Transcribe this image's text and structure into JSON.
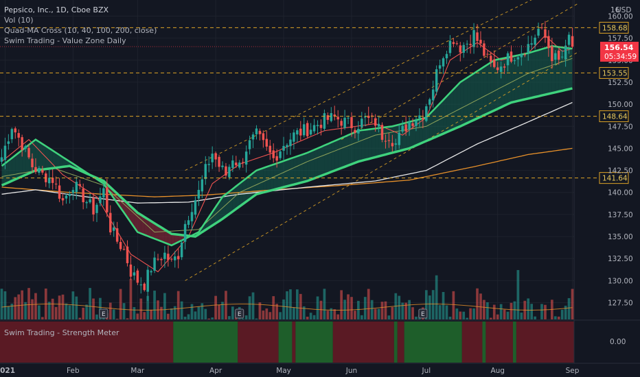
{
  "chart_data": {
    "type": "candlestick",
    "legend": [
      "Pepsico, Inc., 1D, Cboe BZX",
      "Vol (10)",
      "Quad-MA Cross (10, 40, 100, 200, close)",
      "Swim Trading - Value Zone Daily"
    ],
    "currency": "USD",
    "price_ticks": [
      "160.00",
      "157.50",
      "155.00",
      "152.50",
      "150.00",
      "147.50",
      "145.00",
      "142.50",
      "140.00",
      "137.50",
      "135.00",
      "132.50",
      "130.00",
      "127.50"
    ],
    "top_tick_partial": "16",
    "price_range": [
      125.6,
      161.2
    ],
    "last_price": {
      "value": "156.54",
      "countdown": "05:34:59",
      "color": "#f23645"
    },
    "horizontal_levels": [
      {
        "label": "158.68",
        "price": 158.68
      },
      {
        "label": "153.55",
        "price": 153.55
      },
      {
        "label": "148.64",
        "price": 148.64
      },
      {
        "label": "141.64",
        "price": 141.64
      }
    ],
    "x_labels": [
      {
        "label": "2021",
        "day": 1
      },
      {
        "label": "Feb",
        "day": 21
      },
      {
        "label": "Mar",
        "day": 40
      },
      {
        "label": "Apr",
        "day": 63
      },
      {
        "label": "May",
        "day": 83
      },
      {
        "label": "Jun",
        "day": 103
      },
      {
        "label": "Jul",
        "day": 125
      },
      {
        "label": "Aug",
        "day": 146
      },
      {
        "label": "Sep",
        "day": 168
      }
    ],
    "anchors": [
      {
        "day": 0,
        "price": 144.0
      },
      {
        "day": 3,
        "price": 147.6
      },
      {
        "day": 6,
        "price": 145.5
      },
      {
        "day": 9,
        "price": 143.0
      },
      {
        "day": 12,
        "price": 142.0
      },
      {
        "day": 15,
        "price": 141.5
      },
      {
        "day": 18,
        "price": 139.0
      },
      {
        "day": 21,
        "price": 141.0
      },
      {
        "day": 24,
        "price": 139.5
      },
      {
        "day": 27,
        "price": 138.0
      },
      {
        "day": 30,
        "price": 140.2
      },
      {
        "day": 32,
        "price": 136.0
      },
      {
        "day": 34,
        "price": 134.5
      },
      {
        "day": 36,
        "price": 133.5
      },
      {
        "day": 38,
        "price": 131.0
      },
      {
        "day": 40,
        "price": 130.0
      },
      {
        "day": 42,
        "price": 129.6
      },
      {
        "day": 44,
        "price": 131.5
      },
      {
        "day": 46,
        "price": 132.5
      },
      {
        "day": 48,
        "price": 133.0
      },
      {
        "day": 50,
        "price": 132.0
      },
      {
        "day": 52,
        "price": 133.0
      },
      {
        "day": 54,
        "price": 136.5
      },
      {
        "day": 56,
        "price": 138.5
      },
      {
        "day": 58,
        "price": 140.0
      },
      {
        "day": 60,
        "price": 142.5
      },
      {
        "day": 62,
        "price": 144.5
      },
      {
        "day": 64,
        "price": 143.0
      },
      {
        "day": 66,
        "price": 142.0
      },
      {
        "day": 68,
        "price": 144.0
      },
      {
        "day": 70,
        "price": 143.0
      },
      {
        "day": 72,
        "price": 145.0
      },
      {
        "day": 75,
        "price": 146.5
      },
      {
        "day": 78,
        "price": 144.8
      },
      {
        "day": 80,
        "price": 143.8
      },
      {
        "day": 83,
        "price": 145.5
      },
      {
        "day": 86,
        "price": 146.5
      },
      {
        "day": 89,
        "price": 147.0
      },
      {
        "day": 92,
        "price": 147.5
      },
      {
        "day": 95,
        "price": 148.2
      },
      {
        "day": 98,
        "price": 148.5
      },
      {
        "day": 101,
        "price": 148.0
      },
      {
        "day": 104,
        "price": 147.5
      },
      {
        "day": 107,
        "price": 148.3
      },
      {
        "day": 110,
        "price": 148.0
      },
      {
        "day": 112,
        "price": 146.5
      },
      {
        "day": 114,
        "price": 146.5
      },
      {
        "day": 116,
        "price": 145.5
      },
      {
        "day": 118,
        "price": 147.0
      },
      {
        "day": 120,
        "price": 148.0
      },
      {
        "day": 122,
        "price": 148.5
      },
      {
        "day": 124,
        "price": 149.0
      },
      {
        "day": 127,
        "price": 152.0
      },
      {
        "day": 129,
        "price": 155.0
      },
      {
        "day": 131,
        "price": 156.5
      },
      {
        "day": 133,
        "price": 157.5
      },
      {
        "day": 135,
        "price": 156.5
      },
      {
        "day": 137,
        "price": 157.0
      },
      {
        "day": 139,
        "price": 158.0
      },
      {
        "day": 141,
        "price": 156.5
      },
      {
        "day": 143,
        "price": 155.0
      },
      {
        "day": 145,
        "price": 154.0
      },
      {
        "day": 147,
        "price": 154.5
      },
      {
        "day": 150,
        "price": 155.5
      },
      {
        "day": 153,
        "price": 156.0
      },
      {
        "day": 156,
        "price": 157.0
      },
      {
        "day": 158,
        "price": 158.5
      },
      {
        "day": 160,
        "price": 157.5
      },
      {
        "day": 162,
        "price": 155.5
      },
      {
        "day": 164,
        "price": 154.8
      },
      {
        "day": 166,
        "price": 156.0
      },
      {
        "day": 167,
        "price": 157.6
      },
      {
        "day": 168,
        "price": 156.54
      }
    ],
    "ma_slow": [
      {
        "day": 0,
        "price": 140.6
      },
      {
        "day": 20,
        "price": 140.0
      },
      {
        "day": 45,
        "price": 139.5
      },
      {
        "day": 60,
        "price": 139.7
      },
      {
        "day": 80,
        "price": 140.3
      },
      {
        "day": 100,
        "price": 140.8
      },
      {
        "day": 120,
        "price": 141.4
      },
      {
        "day": 140,
        "price": 143.0
      },
      {
        "day": 155,
        "price": 144.3
      },
      {
        "day": 168,
        "price": 145.0
      }
    ],
    "ma_white": [
      {
        "day": 0,
        "price": 139.8
      },
      {
        "day": 10,
        "price": 140.3
      },
      {
        "day": 25,
        "price": 139.5
      },
      {
        "day": 40,
        "price": 138.8
      },
      {
        "day": 55,
        "price": 138.9
      },
      {
        "day": 70,
        "price": 139.8
      },
      {
        "day": 90,
        "price": 140.6
      },
      {
        "day": 110,
        "price": 141.3
      },
      {
        "day": 125,
        "price": 142.5
      },
      {
        "day": 140,
        "price": 145.5
      },
      {
        "day": 155,
        "price": 148.0
      },
      {
        "day": 168,
        "price": 150.2
      }
    ],
    "ma_green_thick": [
      {
        "day": 0,
        "price": 140.8
      },
      {
        "day": 10,
        "price": 142.5
      },
      {
        "day": 20,
        "price": 143.0
      },
      {
        "day": 30,
        "price": 141.3
      },
      {
        "day": 40,
        "price": 137.7
      },
      {
        "day": 50,
        "price": 135.3
      },
      {
        "day": 57,
        "price": 135.0
      },
      {
        "day": 65,
        "price": 137.0
      },
      {
        "day": 75,
        "price": 139.8
      },
      {
        "day": 90,
        "price": 141.3
      },
      {
        "day": 105,
        "price": 143.5
      },
      {
        "day": 120,
        "price": 145.0
      },
      {
        "day": 135,
        "price": 147.5
      },
      {
        "day": 150,
        "price": 150.2
      },
      {
        "day": 168,
        "price": 151.8
      }
    ],
    "ma_green_fast": [
      {
        "day": 0,
        "price": 143.0
      },
      {
        "day": 10,
        "price": 146.0
      },
      {
        "day": 20,
        "price": 143.5
      },
      {
        "day": 30,
        "price": 141.0
      },
      {
        "day": 40,
        "price": 135.5
      },
      {
        "day": 50,
        "price": 134.0
      },
      {
        "day": 58,
        "price": 135.5
      },
      {
        "day": 65,
        "price": 139.5
      },
      {
        "day": 75,
        "price": 142.5
      },
      {
        "day": 90,
        "price": 144.5
      },
      {
        "day": 105,
        "price": 147.0
      },
      {
        "day": 115,
        "price": 147.5
      },
      {
        "day": 125,
        "price": 148.5
      },
      {
        "day": 135,
        "price": 152.5
      },
      {
        "day": 145,
        "price": 155.0
      },
      {
        "day": 155,
        "price": 155.8
      },
      {
        "day": 162,
        "price": 156.6
      },
      {
        "day": 168,
        "price": 156.3
      }
    ],
    "ma_olive": [
      {
        "day": 0,
        "price": 141.8
      },
      {
        "day": 15,
        "price": 142.8
      },
      {
        "day": 30,
        "price": 140.8
      },
      {
        "day": 45,
        "price": 135.5
      },
      {
        "day": 58,
        "price": 135.8
      },
      {
        "day": 70,
        "price": 140.0
      },
      {
        "day": 90,
        "price": 143.5
      },
      {
        "day": 110,
        "price": 146.5
      },
      {
        "day": 125,
        "price": 147.5
      },
      {
        "day": 140,
        "price": 150.5
      },
      {
        "day": 155,
        "price": 153.5
      },
      {
        "day": 168,
        "price": 155.2
      }
    ],
    "ma_red": [
      {
        "day": 0,
        "price": 143.5
      },
      {
        "day": 8,
        "price": 146.0
      },
      {
        "day": 18,
        "price": 142.0
      },
      {
        "day": 28,
        "price": 139.5
      },
      {
        "day": 38,
        "price": 133.0
      },
      {
        "day": 46,
        "price": 131.0
      },
      {
        "day": 55,
        "price": 135.0
      },
      {
        "day": 62,
        "price": 141.0
      },
      {
        "day": 70,
        "price": 143.2
      },
      {
        "day": 80,
        "price": 144.5
      },
      {
        "day": 95,
        "price": 147.0
      },
      {
        "day": 110,
        "price": 147.8
      },
      {
        "day": 118,
        "price": 146.5
      },
      {
        "day": 125,
        "price": 148.5
      },
      {
        "day": 132,
        "price": 155.0
      },
      {
        "day": 140,
        "price": 157.0
      },
      {
        "day": 147,
        "price": 155.0
      },
      {
        "day": 155,
        "price": 155.8
      },
      {
        "day": 160,
        "price": 157.8
      },
      {
        "day": 165,
        "price": 156.0
      },
      {
        "day": 168,
        "price": 156.3
      }
    ],
    "channel_lines": [
      {
        "from": {
          "day": 54,
          "price": 142.5
        },
        "to": {
          "day": 170,
          "price": 164.5
        }
      },
      {
        "from": {
          "day": 54,
          "price": 130.0
        },
        "to": {
          "day": 170,
          "price": 156.0
        }
      },
      {
        "from": {
          "day": 100,
          "price": 146.0
        },
        "to": {
          "day": 170,
          "price": 161.5
        }
      }
    ],
    "volume_average": 127.0,
    "volume_spikes": [
      {
        "day": 38,
        "value": 130.2
      },
      {
        "day": 152,
        "value": 131.2
      },
      {
        "day": 128,
        "value": 130.6
      }
    ],
    "earnings_markers": [
      {
        "day": 30,
        "label": "E"
      },
      {
        "day": 70,
        "label": "E"
      },
      {
        "day": 124,
        "label": "E"
      }
    ],
    "strength_meter": {
      "title": "Swim Trading - Strength Meter",
      "value_label": "0.00",
      "segments": [
        {
          "from": 0,
          "to": 51,
          "state": "bear"
        },
        {
          "from": 51,
          "to": 70,
          "state": "bull"
        },
        {
          "from": 70,
          "to": 82,
          "state": "bear"
        },
        {
          "from": 82,
          "to": 86,
          "state": "bull"
        },
        {
          "from": 86,
          "to": 87,
          "state": "bear"
        },
        {
          "from": 87,
          "to": 98,
          "state": "bull"
        },
        {
          "from": 98,
          "to": 116,
          "state": "bear"
        },
        {
          "from": 116,
          "to": 117,
          "state": "bull"
        },
        {
          "from": 117,
          "to": 119,
          "state": "bear"
        },
        {
          "from": 119,
          "to": 136,
          "state": "bull"
        },
        {
          "from": 136,
          "to": 142,
          "state": "bear"
        },
        {
          "from": 142,
          "to": 143,
          "state": "bull"
        },
        {
          "from": 143,
          "to": 151,
          "state": "bear"
        },
        {
          "from": 151,
          "to": 152,
          "state": "bull"
        },
        {
          "from": 152,
          "to": 169,
          "state": "bear"
        }
      ]
    },
    "colors": {
      "background": "#131722",
      "up": "#26a69a",
      "down": "#ef5350",
      "level_line": "#e0a526",
      "value_zone_fill": "#14705a",
      "value_zone_bear": "#9c2c3c",
      "ma_green": "#3fd27d",
      "ma_white": "#e8e8e8",
      "ma_orange": "#e8912a",
      "ma_red": "#ef5350",
      "ma_olive": "#8ea35a",
      "meter_bull": "#1e5e2a",
      "meter_bear": "#5a1a24",
      "text": "#b2b5be"
    }
  }
}
